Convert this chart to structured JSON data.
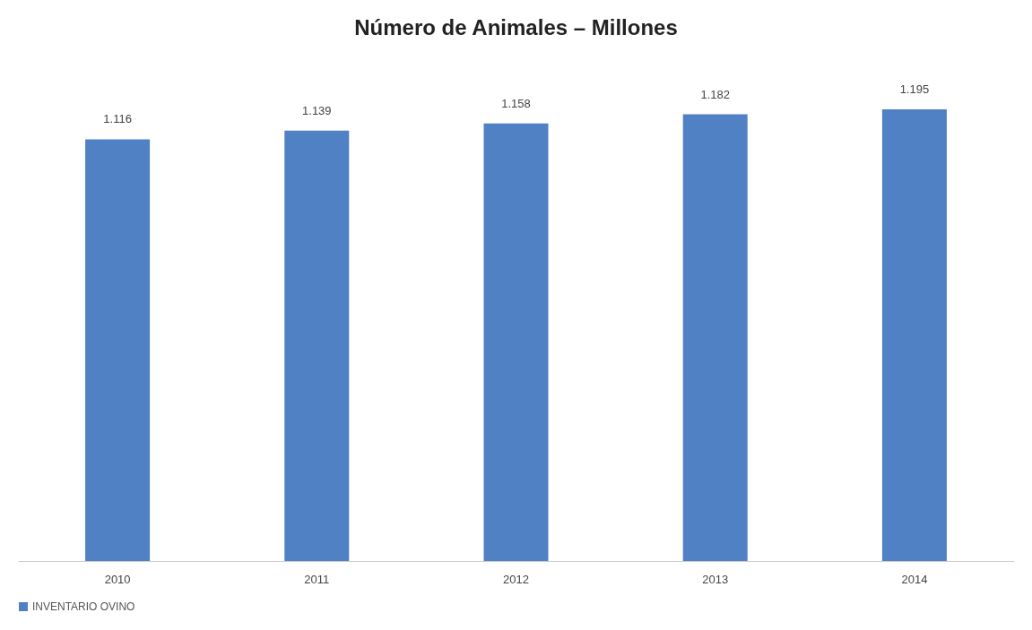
{
  "chart_data": {
    "type": "bar",
    "title": "Número de Animales – Millones",
    "categories": [
      "2010",
      "2011",
      "2012",
      "2013",
      "2014"
    ],
    "series": [
      {
        "name": "INVENTARIO OVINO",
        "color": "#4f81c4",
        "values": [
          1.116,
          1.139,
          1.158,
          1.182,
          1.195
        ]
      }
    ],
    "data_labels": true,
    "legend": "bottom",
    "grid": false
  }
}
